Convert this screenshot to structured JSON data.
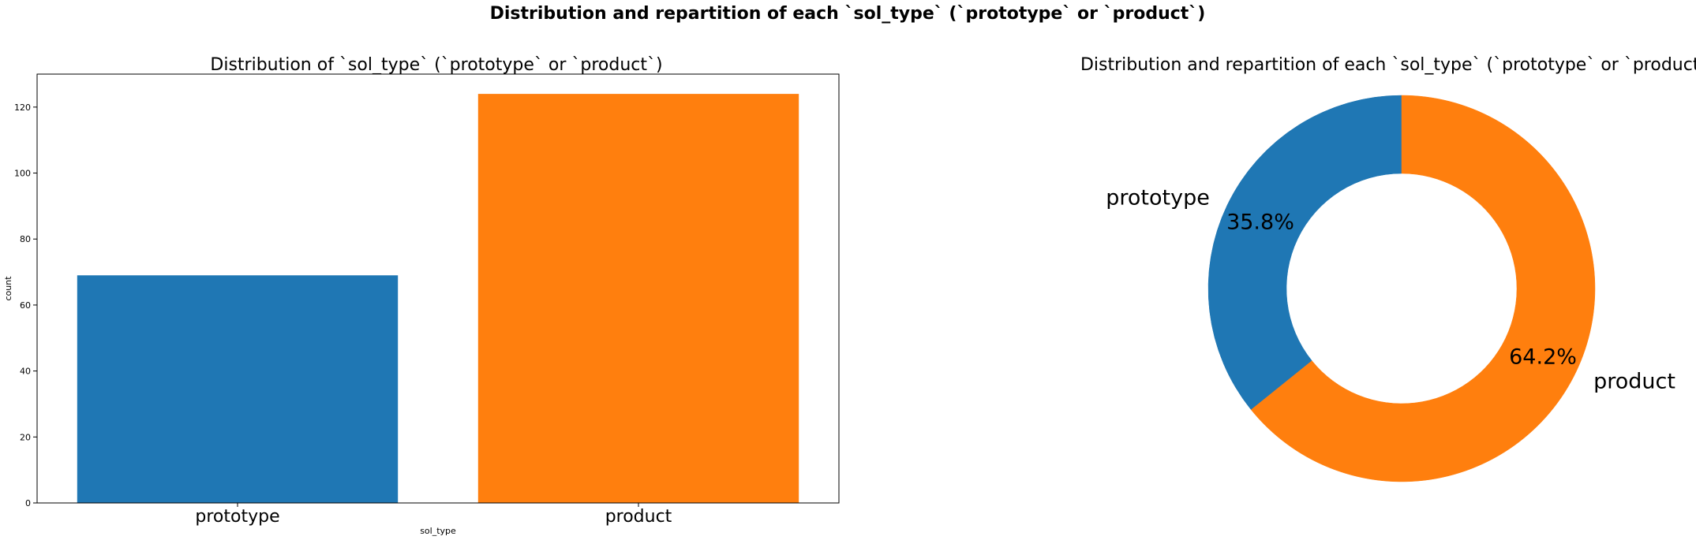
{
  "figure": {
    "suptitle": "Distribution and repartition  of each `sol_type` (`prototype` or `product`)"
  },
  "chart_data": [
    {
      "type": "bar",
      "title": "Distribution of `sol_type` (`prototype` or `product`)",
      "xlabel": "sol_type",
      "ylabel": "count",
      "categories": [
        "prototype",
        "product"
      ],
      "values": [
        69,
        124
      ],
      "colors": [
        "#1f77b4",
        "#ff7f0e"
      ],
      "ylim": [
        0,
        130
      ],
      "yticks": [
        0,
        20,
        40,
        60,
        80,
        100,
        120
      ],
      "grid": false
    },
    {
      "type": "pie",
      "variant": "donut",
      "title": "Distribution and repartition  of each `sol_type` (`prototype` or `product`)",
      "labels": [
        "prototype",
        "product"
      ],
      "values": [
        35.8,
        64.2
      ],
      "value_labels": [
        "35.8%",
        "64.2%"
      ],
      "colors": [
        "#1f77b4",
        "#ff7f0e"
      ],
      "start_angle": "top, counterclockwise"
    }
  ]
}
